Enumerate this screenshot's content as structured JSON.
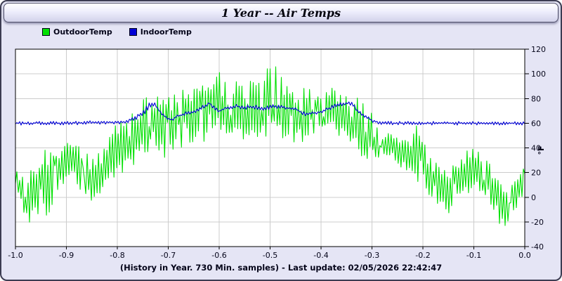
{
  "window": {
    "title": "1 Year -- Air Temps"
  },
  "legend": [
    {
      "label": "OutdoorTemp",
      "color": "#00e000"
    },
    {
      "label": "IndoorTemp",
      "color": "#0000d7"
    }
  ],
  "footer": {
    "text": "(History in Year. 730 Min. samples) - Last update: 02/05/2026 22:42:47"
  },
  "chart_data": {
    "type": "line",
    "title": "1 Year -- Air Temps",
    "xlabel": "",
    "ylabel": "°F",
    "xlim": [
      -1.0,
      0.0
    ],
    "ylim": [
      -40,
      120
    ],
    "grid": true,
    "legend_position": "top-left",
    "x_ticks": [
      "-1.0",
      "-0.9",
      "-0.8",
      "-0.7",
      "-0.6",
      "-0.5",
      "-0.4",
      "-0.3",
      "-0.2",
      "-0.1",
      "0.0"
    ],
    "y_ticks": [
      120,
      100,
      80,
      60,
      40,
      20,
      0,
      -20,
      -40
    ],
    "sample_note": "730 min. samples over 1 year; series stored as daily [x, low, high] envelopes read from the plot",
    "series": [
      {
        "name": "OutdoorTemp",
        "color": "#00e000",
        "style": "noisy-daily-envelope",
        "envelope": [
          [
            -1.0,
            8,
            24
          ],
          [
            -0.99,
            -8,
            18
          ],
          [
            -0.975,
            -24,
            20
          ],
          [
            -0.96,
            -15,
            30
          ],
          [
            -0.945,
            -22,
            38
          ],
          [
            -0.93,
            -10,
            40
          ],
          [
            -0.915,
            5,
            48
          ],
          [
            -0.9,
            12,
            45
          ],
          [
            -0.885,
            15,
            44
          ],
          [
            -0.87,
            0,
            40
          ],
          [
            -0.855,
            -12,
            35
          ],
          [
            -0.84,
            -5,
            38
          ],
          [
            -0.825,
            5,
            45
          ],
          [
            -0.81,
            15,
            55
          ],
          [
            -0.795,
            18,
            62
          ],
          [
            -0.78,
            20,
            70
          ],
          [
            -0.765,
            28,
            72
          ],
          [
            -0.75,
            30,
            80
          ],
          [
            -0.735,
            35,
            88
          ],
          [
            -0.72,
            30,
            85
          ],
          [
            -0.705,
            32,
            82
          ],
          [
            -0.69,
            35,
            85
          ],
          [
            -0.675,
            38,
            88
          ],
          [
            -0.66,
            42,
            92
          ],
          [
            -0.645,
            45,
            90
          ],
          [
            -0.63,
            45,
            95
          ],
          [
            -0.615,
            48,
            102
          ],
          [
            -0.6,
            50,
            112
          ],
          [
            -0.585,
            48,
            100
          ],
          [
            -0.57,
            45,
            98
          ],
          [
            -0.555,
            45,
            95
          ],
          [
            -0.54,
            42,
            94
          ],
          [
            -0.525,
            46,
            98
          ],
          [
            -0.51,
            48,
            105
          ],
          [
            -0.495,
            50,
            110
          ],
          [
            -0.48,
            46,
            100
          ],
          [
            -0.465,
            42,
            95
          ],
          [
            -0.45,
            40,
            92
          ],
          [
            -0.435,
            42,
            90
          ],
          [
            -0.42,
            46,
            90
          ],
          [
            -0.405,
            50,
            90
          ],
          [
            -0.39,
            52,
            88
          ],
          [
            -0.375,
            50,
            90
          ],
          [
            -0.36,
            46,
            90
          ],
          [
            -0.345,
            40,
            88
          ],
          [
            -0.33,
            36,
            82
          ],
          [
            -0.315,
            32,
            75
          ],
          [
            -0.3,
            30,
            70
          ],
          [
            -0.285,
            28,
            55
          ],
          [
            -0.27,
            28,
            52
          ],
          [
            -0.255,
            25,
            53
          ],
          [
            -0.24,
            22,
            50
          ],
          [
            -0.225,
            18,
            48
          ],
          [
            -0.21,
            12,
            62
          ],
          [
            -0.195,
            5,
            45
          ],
          [
            -0.18,
            -2,
            30
          ],
          [
            -0.165,
            -10,
            25
          ],
          [
            -0.15,
            -18,
            22
          ],
          [
            -0.135,
            -5,
            28
          ],
          [
            -0.12,
            0,
            32
          ],
          [
            -0.105,
            4,
            47
          ],
          [
            -0.09,
            0,
            40
          ],
          [
            -0.075,
            -5,
            32
          ],
          [
            -0.06,
            -15,
            25
          ],
          [
            -0.045,
            -25,
            12
          ],
          [
            -0.03,
            -22,
            8
          ],
          [
            -0.015,
            -12,
            15
          ],
          [
            -0.005,
            0,
            30
          ],
          [
            0.0,
            15,
            42
          ]
        ]
      },
      {
        "name": "IndoorTemp",
        "color": "#0000d7",
        "style": "noisy-daily-envelope",
        "envelope": [
          [
            -1.0,
            58.5,
            61.5
          ],
          [
            -0.9,
            58.5,
            61.5
          ],
          [
            -0.85,
            59,
            62
          ],
          [
            -0.8,
            59,
            62
          ],
          [
            -0.78,
            60,
            63
          ],
          [
            -0.765,
            62,
            66
          ],
          [
            -0.75,
            66,
            71
          ],
          [
            -0.74,
            70,
            76
          ],
          [
            -0.73,
            74,
            79
          ],
          [
            -0.722,
            71,
            75
          ],
          [
            -0.714,
            66,
            69
          ],
          [
            -0.7,
            62.5,
            65
          ],
          [
            -0.693,
            61.5,
            63.5
          ],
          [
            -0.683,
            64,
            67
          ],
          [
            -0.669,
            66,
            69
          ],
          [
            -0.655,
            67.5,
            70.5
          ],
          [
            -0.641,
            69,
            72
          ],
          [
            -0.628,
            72,
            76
          ],
          [
            -0.62,
            75,
            78.5
          ],
          [
            -0.61,
            71,
            74
          ],
          [
            -0.6,
            68.5,
            71
          ],
          [
            -0.59,
            70,
            73.5
          ],
          [
            -0.577,
            71.5,
            74.5
          ],
          [
            -0.565,
            72,
            75.5
          ],
          [
            -0.55,
            71,
            74.5
          ],
          [
            -0.53,
            71.5,
            75
          ],
          [
            -0.517,
            70,
            73
          ],
          [
            -0.49,
            72,
            75.5
          ],
          [
            -0.462,
            70.5,
            73.5
          ],
          [
            -0.448,
            69.5,
            72.5
          ],
          [
            -0.43,
            65.5,
            68.5
          ],
          [
            -0.407,
            67.5,
            70
          ],
          [
            -0.393,
            69,
            71.5
          ],
          [
            -0.375,
            72,
            76
          ],
          [
            -0.352,
            74.5,
            78
          ],
          [
            -0.338,
            74,
            77
          ],
          [
            -0.328,
            68.5,
            71
          ],
          [
            -0.32,
            66,
            68.5
          ],
          [
            -0.31,
            63,
            65.5
          ],
          [
            -0.295,
            60,
            63
          ],
          [
            -0.28,
            58.5,
            61.5
          ],
          [
            -0.2,
            58.5,
            61.5
          ],
          [
            -0.1,
            58.5,
            61.5
          ],
          [
            0.0,
            58.5,
            61.5
          ]
        ]
      }
    ]
  }
}
